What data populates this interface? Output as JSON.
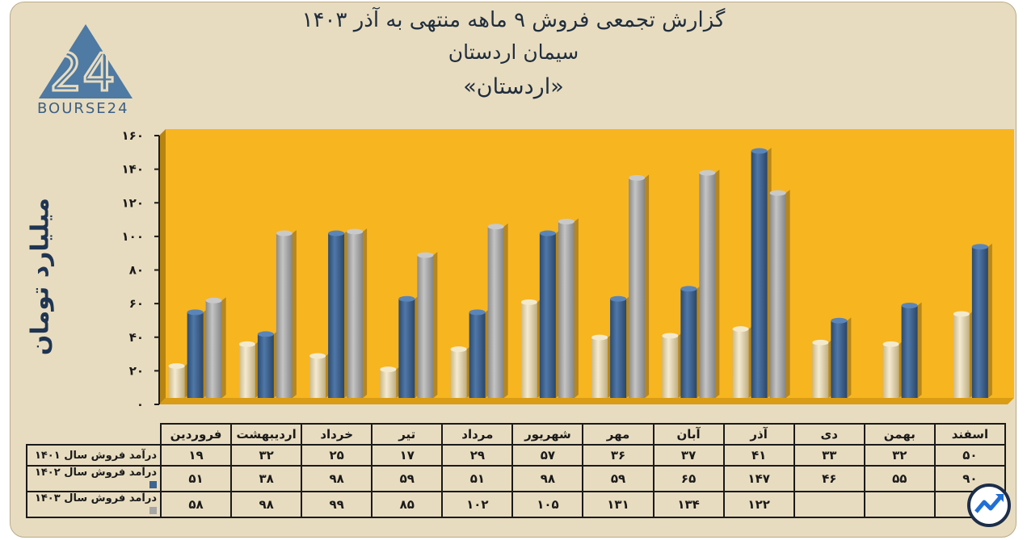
{
  "titles": {
    "line1": "گزارش تجمعی فروش ۹ ماهه منتهی به آذر ۱۴۰۳",
    "line2": "سیمان اردستان",
    "line3": "«اردستان»"
  },
  "logo": {
    "text": "BOURSE24",
    "glyph": "24"
  },
  "colors": {
    "background": "#e8dcc0",
    "plot_area": "#f7b520",
    "series_1401": "#e6d7b0",
    "series_1402": "#3d6391",
    "series_1403": "#a6a6a6",
    "axis": "#1a1a1a"
  },
  "chart_data": {
    "type": "bar",
    "ylabel": "میلیارد تومان",
    "ylim": [
      0,
      160
    ],
    "yticks": [
      "۰",
      "۲۰",
      "۴۰",
      "۶۰",
      "۸۰",
      "۱۰۰",
      "۱۲۰",
      "۱۴۰",
      "۱۶۰"
    ],
    "categories": [
      "فروردین",
      "اردیبهشت",
      "خرداد",
      "تیر",
      "مرداد",
      "شهریور",
      "مهر",
      "آبان",
      "آذر",
      "دی",
      "بهمن",
      "اسفند"
    ],
    "series": [
      {
        "name": "درآمد فروش سال ۱۴۰۱",
        "values": [
          19,
          32,
          25,
          17,
          29,
          57,
          36,
          37,
          41,
          33,
          32,
          50
        ],
        "labels": [
          "۱۹",
          "۳۲",
          "۲۵",
          "۱۷",
          "۲۹",
          "۵۷",
          "۳۶",
          "۳۷",
          "۴۱",
          "۳۳",
          "۳۲",
          "۵۰"
        ]
      },
      {
        "name": "درآمد فروش سال ۱۴۰۲",
        "values": [
          51,
          38,
          98,
          59,
          51,
          98,
          59,
          65,
          147,
          46,
          55,
          90
        ],
        "labels": [
          "۵۱",
          "۳۸",
          "۹۸",
          "۵۹",
          "۵۱",
          "۹۸",
          "۵۹",
          "۶۵",
          "۱۴۷",
          "۴۶",
          "۵۵",
          "۹۰"
        ]
      },
      {
        "name": "درآمد فروش سال ۱۴۰۳",
        "values": [
          58,
          98,
          99,
          85,
          102,
          105,
          131,
          134,
          122,
          null,
          null,
          null
        ],
        "labels": [
          "۵۸",
          "۹۸",
          "۹۹",
          "۸۵",
          "۱۰۲",
          "۱۰۵",
          "۱۳۱",
          "۱۳۴",
          "۱۲۲",
          "",
          "",
          ""
        ]
      }
    ]
  }
}
